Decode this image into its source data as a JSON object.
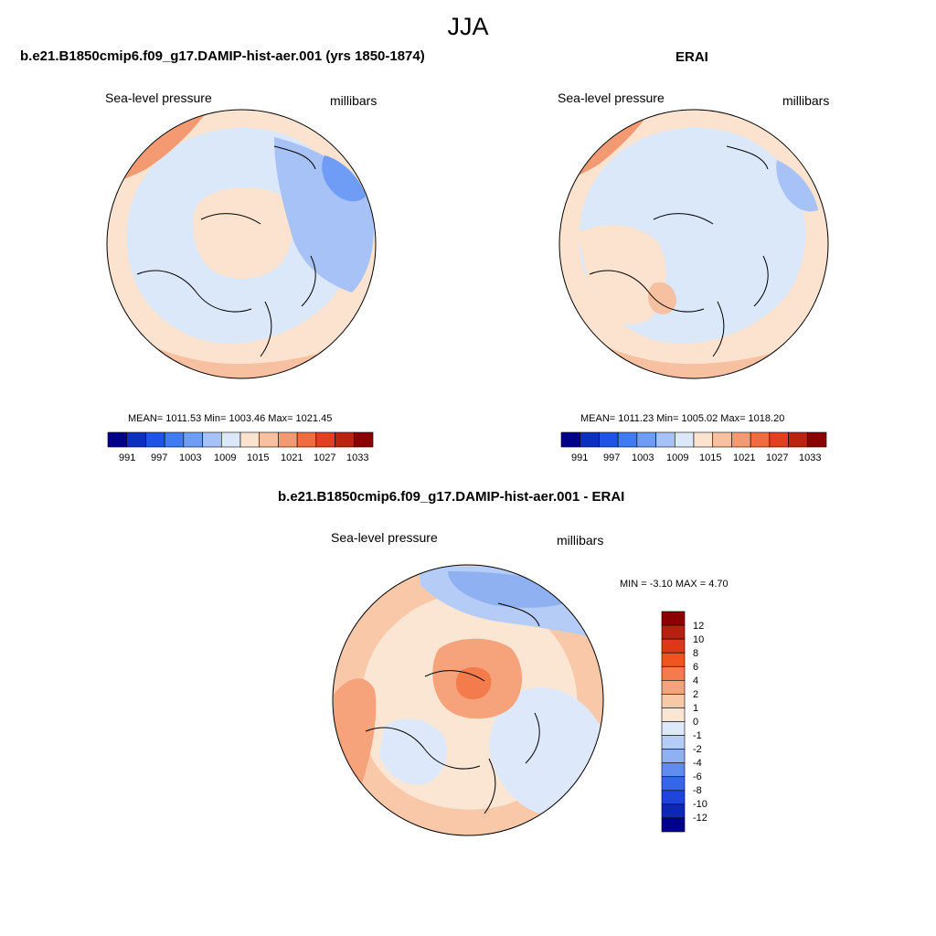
{
  "figure_title": "JJA",
  "panels": [
    {
      "title": "b.e21.B1850cmip6.f09_g17.DAMIP-hist-aer.001 (yrs 1850-1874)",
      "left_label": "Sea-level pressure",
      "right_label": "millibars",
      "stats": "MEAN= 1011.53  Min= 1003.46  Max= 1021.45"
    },
    {
      "title": "ERAI",
      "left_label": "Sea-level pressure",
      "right_label": "millibars",
      "stats": "MEAN= 1011.23  Min= 1005.02  Max= 1018.20"
    },
    {
      "title": "b.e21.B1850cmip6.f09_g17.DAMIP-hist-aer.001 - ERAI",
      "left_label": "Sea-level pressure",
      "right_label": "millibars",
      "stats": "MIN =  -3.10 MAX =   4.70"
    }
  ],
  "slp_colorbar": {
    "labels": [
      "991",
      "997",
      "1003",
      "1009",
      "1015",
      "1021",
      "1027",
      "1033"
    ],
    "colors": [
      "#00008b",
      "#0c2fbf",
      "#1f53e6",
      "#3f7bf2",
      "#6f9cf4",
      "#a7c2f7",
      "#dbe8fa",
      "#fbe3cf",
      "#f7c0a0",
      "#f49a73",
      "#f06b40",
      "#e2401f",
      "#bb2210",
      "#8b0000"
    ]
  },
  "diff_colorbar": {
    "labels": [
      "12",
      "10",
      "8",
      "6",
      "4",
      "2",
      "1",
      "0",
      "-1",
      "-2",
      "-4",
      "-6",
      "-8",
      "-10",
      "-12"
    ],
    "colors": [
      "#8b0000",
      "#b5200f",
      "#dc3a17",
      "#f0541f",
      "#f47b4b",
      "#f6a27a",
      "#f8c8a8",
      "#fbe6d4",
      "#dde9fa",
      "#b5cdf6",
      "#8fb1f2",
      "#5f8cee",
      "#3666e8",
      "#1d45db",
      "#0e27b5",
      "#00008b"
    ]
  },
  "maps": [
    {
      "background": "#dbe8fa",
      "regions": [
        {
          "fill": "#fbe3cf",
          "shape": "outer-ring"
        },
        {
          "fill": "#f7c0a0",
          "shape": "ring-lower"
        },
        {
          "fill": "#f49a73",
          "shape": "corner-upper-left"
        },
        {
          "fill": "#fbe3cf",
          "shape": "center-blob"
        },
        {
          "fill": "#a7c2f7",
          "shape": "right-lobe"
        },
        {
          "fill": "#6f9cf4",
          "shape": "upper-right-spot"
        }
      ]
    },
    {
      "background": "#dbe8fa",
      "regions": [
        {
          "fill": "#fbe3cf",
          "shape": "outer-ring"
        },
        {
          "fill": "#f7c0a0",
          "shape": "ring-lower"
        },
        {
          "fill": "#f49a73",
          "shape": "corner-upper-left"
        },
        {
          "fill": "#fbe3cf",
          "shape": "left-tongue"
        },
        {
          "fill": "#f7c0a0",
          "shape": "center-small"
        },
        {
          "fill": "#a7c2f7",
          "shape": "upper-right-spot"
        }
      ]
    },
    {
      "background": "#f8c8a8",
      "regions": [
        {
          "fill": "#fbe6d4",
          "shape": "inner-disc"
        },
        {
          "fill": "#dde9fa",
          "shape": "lower-right-blue"
        },
        {
          "fill": "#b5cdf6",
          "shape": "upper-blue-band"
        },
        {
          "fill": "#8fb1f2",
          "shape": "upper-blue-core"
        },
        {
          "fill": "#f6a27a",
          "shape": "center-warm"
        },
        {
          "fill": "#f47b4b",
          "shape": "center-hot"
        },
        {
          "fill": "#f6a27a",
          "shape": "left-warm"
        },
        {
          "fill": "#dde9fa",
          "shape": "left-blue"
        }
      ]
    }
  ]
}
